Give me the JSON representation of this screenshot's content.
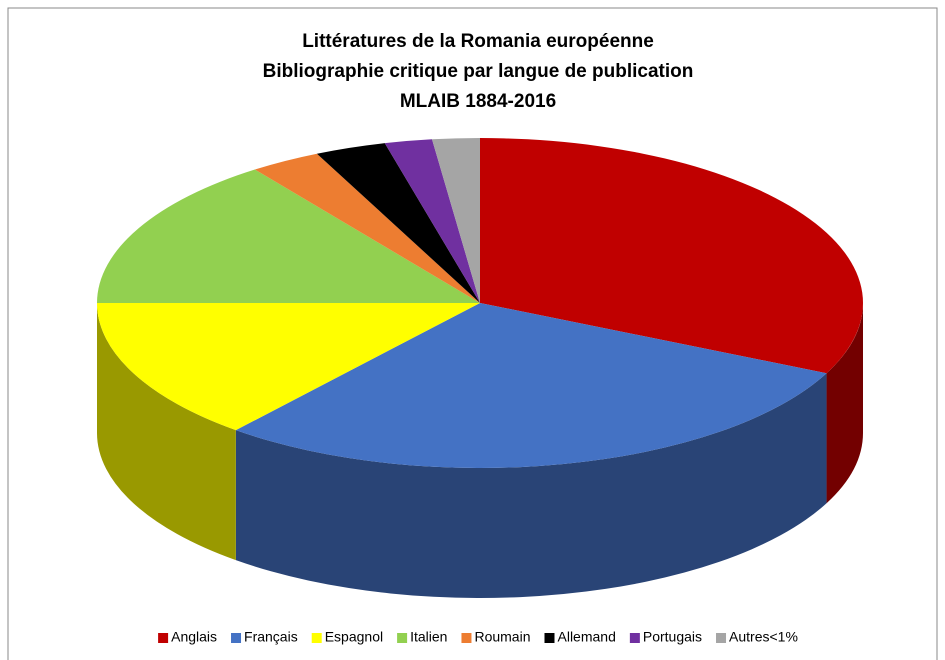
{
  "chart_data": {
    "type": "pie3d",
    "title": [
      "Littératures de la Romania européenne",
      "Bibliographie critique par langue de publication",
      "MLAIB 1884-2016"
    ],
    "categories": [
      "Anglais",
      "Français",
      "Espagnol",
      "Italien",
      "Roumain",
      "Allemand",
      "Portugais",
      "Autres<1%"
    ],
    "values": [
      32,
      29,
      14,
      15,
      3,
      3,
      2,
      2
    ],
    "colors": [
      "#c00000",
      "#4472c4",
      "#ffff00",
      "#92d050",
      "#ed7d31",
      "#000000",
      "#7030a0",
      "#a5a5a5"
    ],
    "legend": "bottom"
  }
}
